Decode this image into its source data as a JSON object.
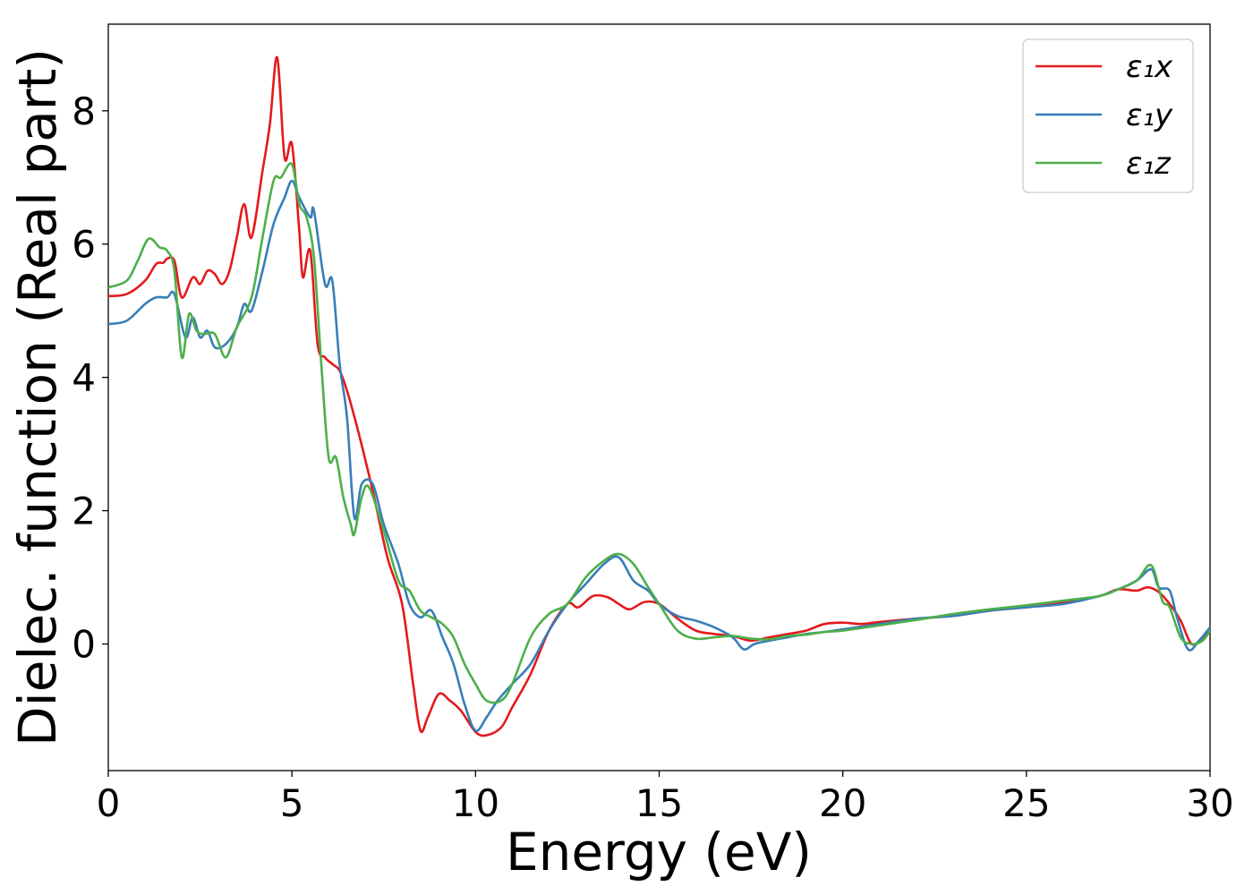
{
  "chart_data": {
    "type": "line",
    "xlabel": "Energy (eV)",
    "ylabel": "Dielec. function (Real part)",
    "xlim": [
      0,
      30
    ],
    "ylim": [
      -1.9,
      9.3
    ],
    "xticks": [
      0,
      5,
      10,
      15,
      20,
      25,
      30
    ],
    "yticks": [
      0,
      2,
      4,
      6,
      8
    ],
    "grid": false,
    "legend_position": "top-right",
    "series": [
      {
        "name": "ε₁x",
        "color": "#e41a1c",
        "points": [
          [
            0,
            5.22
          ],
          [
            0.5,
            5.25
          ],
          [
            1,
            5.45
          ],
          [
            1.3,
            5.7
          ],
          [
            1.5,
            5.72
          ],
          [
            1.6,
            5.78
          ],
          [
            1.8,
            5.75
          ],
          [
            2,
            5.2
          ],
          [
            2.3,
            5.5
          ],
          [
            2.5,
            5.4
          ],
          [
            2.7,
            5.6
          ],
          [
            2.9,
            5.55
          ],
          [
            3.1,
            5.4
          ],
          [
            3.3,
            5.6
          ],
          [
            3.5,
            6.1
          ],
          [
            3.7,
            6.6
          ],
          [
            3.9,
            6.1
          ],
          [
            4.2,
            7.1
          ],
          [
            4.4,
            7.8
          ],
          [
            4.6,
            8.8
          ],
          [
            4.8,
            7.3
          ],
          [
            5.0,
            7.5
          ],
          [
            5.2,
            6.2
          ],
          [
            5.3,
            5.5
          ],
          [
            5.5,
            5.9
          ],
          [
            5.7,
            4.5
          ],
          [
            5.9,
            4.3
          ],
          [
            6.1,
            4.2
          ],
          [
            6.3,
            4.1
          ],
          [
            6.5,
            3.8
          ],
          [
            6.8,
            3.2
          ],
          [
            7.2,
            2.3
          ],
          [
            7.6,
            1.3
          ],
          [
            8.0,
            0.6
          ],
          [
            8.3,
            -0.6
          ],
          [
            8.5,
            -1.3
          ],
          [
            8.7,
            -1.1
          ],
          [
            9.0,
            -0.75
          ],
          [
            9.3,
            -0.85
          ],
          [
            9.6,
            -1.0
          ],
          [
            10.0,
            -1.32
          ],
          [
            10.3,
            -1.37
          ],
          [
            10.7,
            -1.25
          ],
          [
            11.0,
            -0.95
          ],
          [
            11.5,
            -0.45
          ],
          [
            12.0,
            0.2
          ],
          [
            12.5,
            0.6
          ],
          [
            12.8,
            0.55
          ],
          [
            13.2,
            0.72
          ],
          [
            13.6,
            0.7
          ],
          [
            13.9,
            0.6
          ],
          [
            14.2,
            0.52
          ],
          [
            14.6,
            0.63
          ],
          [
            15.0,
            0.6
          ],
          [
            15.5,
            0.38
          ],
          [
            16.0,
            0.2
          ],
          [
            16.5,
            0.15
          ],
          [
            17.0,
            0.12
          ],
          [
            17.5,
            0.05
          ],
          [
            18.0,
            0.1
          ],
          [
            18.5,
            0.15
          ],
          [
            19.0,
            0.2
          ],
          [
            19.5,
            0.3
          ],
          [
            20.0,
            0.32
          ],
          [
            20.5,
            0.3
          ],
          [
            21.0,
            0.33
          ],
          [
            22.0,
            0.38
          ],
          [
            23.0,
            0.42
          ],
          [
            24.0,
            0.5
          ],
          [
            25.0,
            0.55
          ],
          [
            26.0,
            0.62
          ],
          [
            27.0,
            0.72
          ],
          [
            27.5,
            0.82
          ],
          [
            28.0,
            0.8
          ],
          [
            28.3,
            0.85
          ],
          [
            28.6,
            0.78
          ],
          [
            28.9,
            0.6
          ],
          [
            29.2,
            0.35
          ],
          [
            29.5,
            0.0
          ],
          [
            29.8,
            0.1
          ],
          [
            30,
            0.25
          ]
        ]
      },
      {
        "name": "ε₁y",
        "color": "#377eb8",
        "points": [
          [
            0,
            4.8
          ],
          [
            0.5,
            4.85
          ],
          [
            1,
            5.1
          ],
          [
            1.3,
            5.2
          ],
          [
            1.6,
            5.2
          ],
          [
            1.8,
            5.25
          ],
          [
            2.1,
            4.6
          ],
          [
            2.3,
            4.9
          ],
          [
            2.5,
            4.6
          ],
          [
            2.7,
            4.7
          ],
          [
            2.9,
            4.45
          ],
          [
            3.2,
            4.5
          ],
          [
            3.5,
            4.75
          ],
          [
            3.7,
            5.1
          ],
          [
            3.9,
            5.0
          ],
          [
            4.2,
            5.6
          ],
          [
            4.5,
            6.3
          ],
          [
            4.8,
            6.7
          ],
          [
            5.0,
            6.95
          ],
          [
            5.2,
            6.7
          ],
          [
            5.5,
            6.4
          ],
          [
            5.6,
            6.5
          ],
          [
            5.9,
            5.4
          ],
          [
            6.1,
            5.45
          ],
          [
            6.3,
            4.2
          ],
          [
            6.5,
            3.4
          ],
          [
            6.7,
            1.9
          ],
          [
            6.9,
            2.4
          ],
          [
            7.2,
            2.4
          ],
          [
            7.5,
            1.8
          ],
          [
            7.9,
            1.2
          ],
          [
            8.2,
            0.6
          ],
          [
            8.5,
            0.4
          ],
          [
            8.8,
            0.5
          ],
          [
            9.1,
            0.1
          ],
          [
            9.4,
            -0.3
          ],
          [
            9.7,
            -0.9
          ],
          [
            10.0,
            -1.3
          ],
          [
            10.3,
            -1.1
          ],
          [
            10.6,
            -0.85
          ],
          [
            11.0,
            -0.6
          ],
          [
            11.5,
            -0.3
          ],
          [
            12.0,
            0.2
          ],
          [
            12.5,
            0.6
          ],
          [
            13.0,
            0.9
          ],
          [
            13.5,
            1.2
          ],
          [
            13.9,
            1.3
          ],
          [
            14.3,
            0.95
          ],
          [
            14.7,
            0.8
          ],
          [
            15.0,
            0.6
          ],
          [
            15.5,
            0.42
          ],
          [
            16.0,
            0.35
          ],
          [
            16.5,
            0.25
          ],
          [
            17.0,
            0.1
          ],
          [
            17.3,
            -0.08
          ],
          [
            17.6,
            0.0
          ],
          [
            18.0,
            0.05
          ],
          [
            18.5,
            0.1
          ],
          [
            19.0,
            0.15
          ],
          [
            19.5,
            0.18
          ],
          [
            20.0,
            0.22
          ],
          [
            21.0,
            0.3
          ],
          [
            22.0,
            0.38
          ],
          [
            23.0,
            0.42
          ],
          [
            24.0,
            0.5
          ],
          [
            25.0,
            0.55
          ],
          [
            26.0,
            0.6
          ],
          [
            27.0,
            0.72
          ],
          [
            27.5,
            0.82
          ],
          [
            28.0,
            0.95
          ],
          [
            28.4,
            1.12
          ],
          [
            28.6,
            0.85
          ],
          [
            28.9,
            0.8
          ],
          [
            29.1,
            0.4
          ],
          [
            29.4,
            -0.08
          ],
          [
            29.7,
            0.05
          ],
          [
            30,
            0.25
          ]
        ]
      },
      {
        "name": "ε₁z",
        "color": "#4daf4a",
        "points": [
          [
            0,
            5.35
          ],
          [
            0.5,
            5.45
          ],
          [
            0.8,
            5.75
          ],
          [
            1.1,
            6.08
          ],
          [
            1.4,
            5.95
          ],
          [
            1.6,
            5.9
          ],
          [
            1.8,
            5.6
          ],
          [
            2.0,
            4.3
          ],
          [
            2.2,
            4.95
          ],
          [
            2.4,
            4.7
          ],
          [
            2.6,
            4.65
          ],
          [
            2.9,
            4.65
          ],
          [
            3.2,
            4.3
          ],
          [
            3.5,
            4.75
          ],
          [
            3.9,
            5.2
          ],
          [
            4.2,
            6.1
          ],
          [
            4.5,
            6.95
          ],
          [
            4.7,
            7.0
          ],
          [
            5.0,
            7.2
          ],
          [
            5.2,
            6.6
          ],
          [
            5.4,
            6.4
          ],
          [
            5.6,
            5.8
          ],
          [
            5.8,
            4.2
          ],
          [
            6.0,
            2.8
          ],
          [
            6.2,
            2.8
          ],
          [
            6.4,
            2.2
          ],
          [
            6.6,
            1.8
          ],
          [
            6.7,
            1.65
          ],
          [
            6.9,
            2.2
          ],
          [
            7.1,
            2.35
          ],
          [
            7.5,
            1.7
          ],
          [
            7.9,
            0.95
          ],
          [
            8.2,
            0.8
          ],
          [
            8.5,
            0.5
          ],
          [
            8.8,
            0.4
          ],
          [
            9.1,
            0.3
          ],
          [
            9.4,
            0.1
          ],
          [
            9.7,
            -0.3
          ],
          [
            10.0,
            -0.6
          ],
          [
            10.3,
            -0.85
          ],
          [
            10.7,
            -0.85
          ],
          [
            11.0,
            -0.6
          ],
          [
            11.5,
            0.1
          ],
          [
            12.0,
            0.45
          ],
          [
            12.5,
            0.6
          ],
          [
            13.0,
            1.0
          ],
          [
            13.5,
            1.25
          ],
          [
            13.9,
            1.35
          ],
          [
            14.3,
            1.2
          ],
          [
            14.7,
            0.85
          ],
          [
            15.0,
            0.6
          ],
          [
            15.5,
            0.2
          ],
          [
            16.0,
            0.08
          ],
          [
            16.5,
            0.1
          ],
          [
            17.0,
            0.12
          ],
          [
            17.5,
            0.08
          ],
          [
            18.0,
            0.07
          ],
          [
            18.5,
            0.12
          ],
          [
            19.0,
            0.14
          ],
          [
            19.5,
            0.18
          ],
          [
            20.0,
            0.2
          ],
          [
            21.0,
            0.28
          ],
          [
            22.0,
            0.36
          ],
          [
            23.0,
            0.45
          ],
          [
            24.0,
            0.52
          ],
          [
            25.0,
            0.58
          ],
          [
            26.0,
            0.65
          ],
          [
            27.0,
            0.72
          ],
          [
            27.5,
            0.82
          ],
          [
            28.0,
            0.95
          ],
          [
            28.4,
            1.18
          ],
          [
            28.7,
            0.65
          ],
          [
            28.9,
            0.55
          ],
          [
            29.2,
            0.1
          ],
          [
            29.5,
            0.0
          ],
          [
            29.8,
            0.05
          ],
          [
            30,
            0.2
          ]
        ]
      }
    ]
  }
}
